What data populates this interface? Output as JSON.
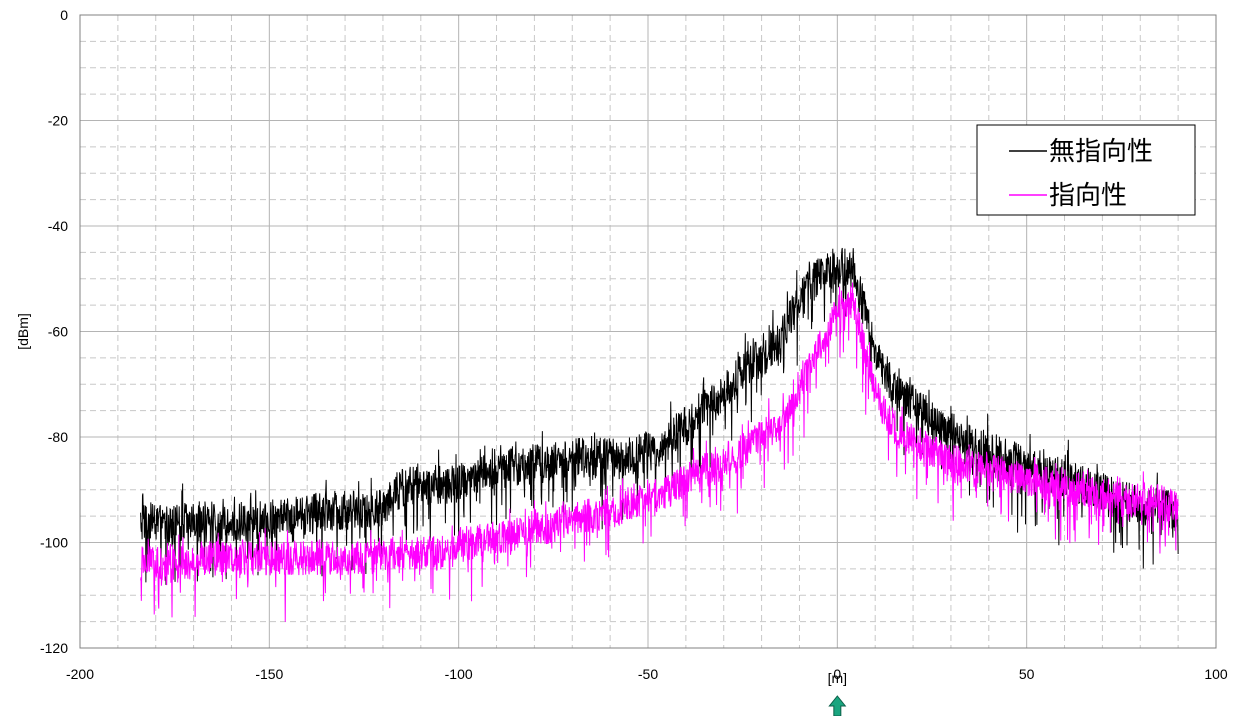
{
  "chart_data": {
    "type": "line",
    "xlabel": "[m]",
    "ylabel": "[dBm]",
    "xlim": [
      -200,
      100
    ],
    "ylim": [
      -120,
      0
    ],
    "x_ticks": [
      "-200",
      "-150",
      "-100",
      "-50",
      "0",
      "50",
      "100"
    ],
    "y_ticks": [
      "0",
      "-20",
      "-40",
      "-60",
      "-80",
      "-100",
      "-120"
    ],
    "grid": true,
    "legend_position": "top-right",
    "marker": {
      "x": 0,
      "color": "#1aa57f",
      "shape": "up-arrow-below-axis"
    },
    "x": [
      -184,
      -180,
      -176,
      -172,
      -168,
      -164,
      -160,
      -156,
      -152,
      -148,
      -144,
      -140,
      -136,
      -132,
      -128,
      -124,
      -120,
      -116,
      -112,
      -108,
      -104,
      -100,
      -96,
      -92,
      -88,
      -84,
      -80,
      -76,
      -72,
      -68,
      -64,
      -60,
      -56,
      -52,
      -48,
      -44,
      -40,
      -36,
      -32,
      -28,
      -24,
      -20,
      -16,
      -12,
      -8,
      -4,
      0,
      4,
      8,
      12,
      16,
      20,
      24,
      28,
      32,
      36,
      40,
      44,
      48,
      52,
      56,
      60,
      64,
      68,
      72,
      76,
      80,
      84,
      88,
      90
    ],
    "series": [
      {
        "name": "無指向性",
        "color": "#000000",
        "noise_amplitude": 7,
        "values": [
          -96,
          -96,
          -97,
          -96,
          -96,
          -96,
          -96,
          -96,
          -96,
          -95,
          -95,
          -95,
          -94,
          -94,
          -94,
          -94,
          -93,
          -90,
          -89,
          -89,
          -89,
          -89,
          -88,
          -86,
          -86,
          -86,
          -85,
          -85,
          -84,
          -84,
          -84,
          -84,
          -84,
          -83,
          -83,
          -80,
          -78,
          -75,
          -73,
          -70,
          -67,
          -65,
          -62,
          -57,
          -52,
          -49,
          -48,
          -48,
          -58,
          -67,
          -72,
          -74,
          -76,
          -78,
          -80,
          -82,
          -83,
          -84,
          -85,
          -86,
          -87,
          -88,
          -89,
          -90,
          -91,
          -92,
          -93,
          -93,
          -94,
          -95
        ]
      },
      {
        "name": "指向性",
        "color": "#ff00ff",
        "noise_amplitude": 6,
        "values": [
          -104,
          -104,
          -104,
          -104,
          -103,
          -103,
          -103,
          -103,
          -103,
          -103,
          -103,
          -103,
          -103,
          -103,
          -103,
          -103,
          -102,
          -102,
          -102,
          -102,
          -102,
          -101,
          -100,
          -99,
          -99,
          -98,
          -97,
          -97,
          -96,
          -95,
          -95,
          -95,
          -93,
          -92,
          -91,
          -90,
          -88,
          -86,
          -85,
          -84,
          -82,
          -80,
          -78,
          -74,
          -68,
          -62,
          -56,
          -54,
          -66,
          -75,
          -79,
          -81,
          -82,
          -84,
          -85,
          -86,
          -86,
          -87,
          -88,
          -88,
          -89,
          -90,
          -90,
          -91,
          -91,
          -92,
          -92,
          -92,
          -93,
          -94
        ]
      }
    ]
  }
}
